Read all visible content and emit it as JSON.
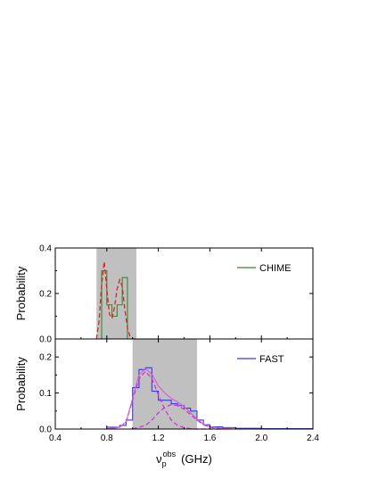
{
  "chart_data": [
    {
      "type": "line",
      "panel": "top",
      "ylabel": "Probability",
      "xlim": [
        0.4,
        2.4
      ],
      "ylim": [
        0.0,
        0.4
      ],
      "yticks": [
        "0.0",
        "0.2",
        "0.4"
      ],
      "shaded_x_range": [
        0.72,
        1.03
      ],
      "legend": "top-right",
      "series": [
        {
          "name": "CHIME",
          "style": "step",
          "color": "#2e8b2e",
          "x": [
            0.76,
            0.8,
            0.84,
            0.88,
            0.92,
            0.96
          ],
          "values": [
            0.3,
            0.15,
            0.1,
            0.15,
            0.27,
            0.0
          ]
        },
        {
          "style": "dashed",
          "color": "#e02020",
          "x": [
            0.72,
            0.74,
            0.76,
            0.78,
            0.8,
            0.82,
            0.84,
            0.86,
            0.88,
            0.9,
            0.92,
            0.94,
            0.96,
            0.98,
            1.0,
            1.02
          ],
          "values": [
            0.0,
            0.08,
            0.24,
            0.34,
            0.22,
            0.11,
            0.09,
            0.14,
            0.22,
            0.26,
            0.23,
            0.13,
            0.05,
            0.01,
            0.0,
            0.0
          ]
        }
      ]
    },
    {
      "type": "line",
      "panel": "bottom",
      "ylabel": "Probability",
      "xlabel_main": "ν",
      "xlabel_sub": "p",
      "xlabel_sup": "obs",
      "xlabel_unit": "(GHz)",
      "xlim": [
        0.4,
        2.4
      ],
      "ylim": [
        0.0,
        0.25
      ],
      "xticks": [
        "0.4",
        "0.8",
        "1.2",
        "1.6",
        "2.0",
        "2.4"
      ],
      "yticks": [
        "0.0",
        "0.1",
        "0.2"
      ],
      "shaded_x_range": [
        1.0,
        1.5
      ],
      "legend": "top-right",
      "series": [
        {
          "name": "FAST",
          "style": "step",
          "color": "#3a3adc",
          "x": [
            0.4,
            0.8,
            0.9,
            0.95,
            1.0,
            1.05,
            1.1,
            1.15,
            1.2,
            1.25,
            1.3,
            1.35,
            1.4,
            1.45,
            1.5,
            1.55,
            1.6,
            1.7,
            1.8,
            2.0,
            2.4
          ],
          "values": [
            0.0,
            0.005,
            0.01,
            0.025,
            0.115,
            0.165,
            0.17,
            0.105,
            0.08,
            0.08,
            0.07,
            0.065,
            0.058,
            0.05,
            0.025,
            0.012,
            0.006,
            0.004,
            0.002,
            0.001,
            0.0
          ]
        },
        {
          "style": "dashed",
          "color": "#d033d0",
          "x": [
            0.8,
            0.9,
            0.95,
            1.0,
            1.05,
            1.1,
            1.15,
            1.2,
            1.25,
            1.3,
            1.35,
            1.4,
            1.45,
            1.5,
            1.55,
            1.6,
            1.7
          ],
          "values": [
            0.0,
            0.005,
            0.02,
            0.08,
            0.14,
            0.16,
            0.14,
            0.095,
            0.055,
            0.025,
            0.01,
            0.004,
            0.001,
            0.0,
            0.0,
            0.0,
            0.0
          ]
        },
        {
          "style": "dashed",
          "color": "#d033d0",
          "x": [
            1.0,
            1.1,
            1.15,
            1.2,
            1.25,
            1.3,
            1.35,
            1.4,
            1.45,
            1.5,
            1.55,
            1.6,
            1.7
          ],
          "values": [
            0.0,
            0.01,
            0.025,
            0.045,
            0.06,
            0.068,
            0.065,
            0.055,
            0.04,
            0.025,
            0.012,
            0.005,
            0.0
          ]
        },
        {
          "style": "solid",
          "color": "#d65ad6",
          "x": [
            0.8,
            0.9,
            0.95,
            1.0,
            1.05,
            1.1,
            1.15,
            1.2,
            1.25,
            1.3,
            1.35,
            1.4,
            1.45,
            1.5,
            1.55,
            1.6,
            1.7,
            1.8
          ],
          "values": [
            0.0,
            0.005,
            0.02,
            0.085,
            0.15,
            0.168,
            0.152,
            0.12,
            0.1,
            0.085,
            0.075,
            0.062,
            0.045,
            0.028,
            0.014,
            0.006,
            0.002,
            0.0
          ]
        }
      ]
    }
  ]
}
